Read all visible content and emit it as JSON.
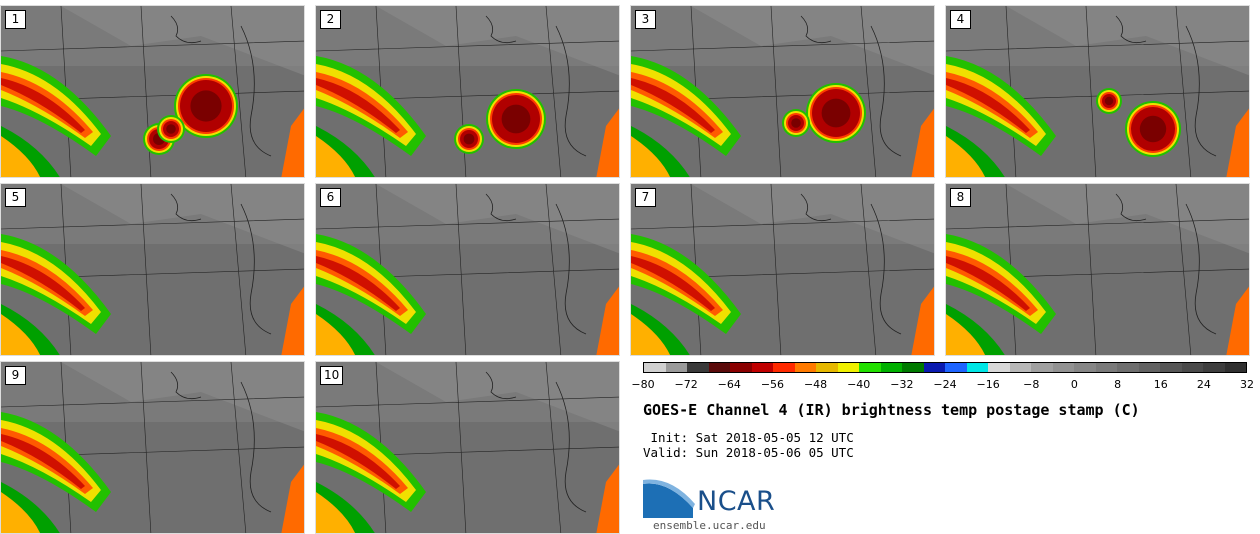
{
  "panels": [
    {
      "label": "1"
    },
    {
      "label": "2"
    },
    {
      "label": "3"
    },
    {
      "label": "4"
    },
    {
      "label": "5"
    },
    {
      "label": "6"
    },
    {
      "label": "7"
    },
    {
      "label": "8"
    },
    {
      "label": "9"
    },
    {
      "label": "10"
    }
  ],
  "colorbar": {
    "colors": [
      "#d0d0d0",
      "#9a9a9a",
      "#3a3a3a",
      "#5a0a0a",
      "#8a0000",
      "#c00000",
      "#ff2a00",
      "#ff7a00",
      "#e6b800",
      "#f0f000",
      "#22e000",
      "#00b000",
      "#007a00",
      "#0a1ab0",
      "#1e64ff",
      "#00e6e6",
      "#d8d8d8",
      "#b8b8b8",
      "#a0a0a0",
      "#929292",
      "#868686",
      "#7a7a7a",
      "#6e6e6e",
      "#626262",
      "#565656",
      "#4a4a4a",
      "#3e3e3e",
      "#303030"
    ],
    "ticks": [
      "−80",
      "−72",
      "−64",
      "−56",
      "−48",
      "−40",
      "−32",
      "−24",
      "−16",
      "−8",
      "0",
      "8",
      "16",
      "24",
      "32"
    ]
  },
  "title": "GOES-E Channel 4 (IR) brightness temp postage stamp (C)",
  "init": " Init: Sat 2018-05-05 12 UTC",
  "valid": "Valid: Sun 2018-05-06 05 UTC",
  "logo_text": "NCAR",
  "site": "ensemble.ucar.edu"
}
